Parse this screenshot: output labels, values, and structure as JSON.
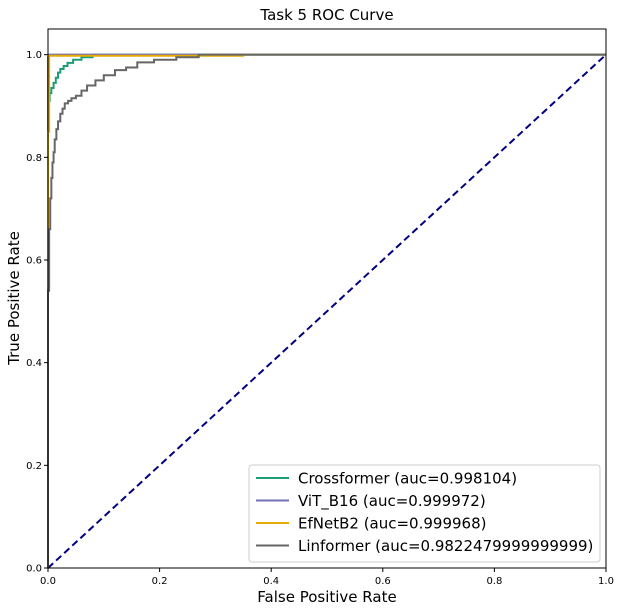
{
  "chart_data": {
    "type": "line",
    "title": "Task 5 ROC Curve",
    "xlabel": "False Positive Rate",
    "ylabel": "True Positive Rate",
    "xlim": [
      0,
      1
    ],
    "ylim": [
      0,
      1.05
    ],
    "xticks": [
      0.0,
      0.2,
      0.4,
      0.6,
      0.8,
      1.0
    ],
    "xtick_labels": [
      "0.0",
      "0.2",
      "0.4",
      "0.6",
      "0.8",
      "1.0"
    ],
    "yticks": [
      0.0,
      0.2,
      0.4,
      0.6,
      0.8,
      1.0
    ],
    "ytick_labels": [
      "0.0",
      "0.2",
      "0.4",
      "0.6",
      "0.8",
      "1.0"
    ],
    "grid": false,
    "legend_position": "lower-right",
    "series": [
      {
        "name": "Crossformer (auc=0.998104)",
        "color": "#1b9e77",
        "x": [
          0,
          0,
          0.003,
          0.003,
          0.006,
          0.006,
          0.01,
          0.01,
          0.014,
          0.014,
          0.018,
          0.018,
          0.022,
          0.022,
          0.028,
          0.028,
          0.035,
          0.035,
          0.045,
          0.045,
          0.06,
          0.06,
          0.08,
          0.08,
          1.0
        ],
        "y": [
          0,
          0.91,
          0.91,
          0.925,
          0.925,
          0.935,
          0.935,
          0.945,
          0.945,
          0.955,
          0.955,
          0.965,
          0.965,
          0.972,
          0.972,
          0.978,
          0.978,
          0.984,
          0.984,
          0.99,
          0.99,
          0.995,
          0.995,
          1.0,
          1.0
        ]
      },
      {
        "name": "ViT_B16 (auc=0.999972)",
        "color": "#7570b3",
        "x": [
          0,
          0,
          0.002,
          0.002,
          1.0
        ],
        "y": [
          0,
          0.995,
          0.995,
          1.0,
          1.0
        ]
      },
      {
        "name": "EfNetB2 (auc=0.999968)",
        "color": "#e6ab02",
        "x": [
          0,
          0,
          0.002,
          0.002,
          0.35,
          0.35,
          1.0
        ],
        "y": [
          0,
          0.85,
          0.85,
          0.998,
          0.998,
          1.0,
          1.0
        ]
      },
      {
        "name": "Linformer (auc=0.9822479999999999)",
        "color": "#666666",
        "x": [
          0,
          0,
          0.002,
          0.002,
          0.004,
          0.004,
          0.006,
          0.006,
          0.008,
          0.008,
          0.01,
          0.01,
          0.012,
          0.012,
          0.015,
          0.015,
          0.018,
          0.018,
          0.022,
          0.022,
          0.026,
          0.026,
          0.03,
          0.03,
          0.036,
          0.036,
          0.042,
          0.042,
          0.05,
          0.05,
          0.06,
          0.06,
          0.07,
          0.07,
          0.085,
          0.085,
          0.1,
          0.1,
          0.12,
          0.12,
          0.14,
          0.14,
          0.16,
          0.16,
          0.19,
          0.19,
          0.23,
          0.23,
          0.27,
          0.27,
          1.0
        ],
        "y": [
          0,
          0.54,
          0.54,
          0.66,
          0.66,
          0.72,
          0.72,
          0.76,
          0.76,
          0.79,
          0.79,
          0.81,
          0.81,
          0.835,
          0.835,
          0.855,
          0.855,
          0.87,
          0.87,
          0.885,
          0.885,
          0.895,
          0.895,
          0.905,
          0.905,
          0.91,
          0.91,
          0.915,
          0.915,
          0.92,
          0.92,
          0.93,
          0.93,
          0.94,
          0.94,
          0.95,
          0.95,
          0.96,
          0.96,
          0.97,
          0.97,
          0.975,
          0.975,
          0.985,
          0.985,
          0.99,
          0.99,
          0.995,
          0.995,
          1.0,
          1.0
        ]
      }
    ],
    "reference_line": {
      "x": [
        0,
        1
      ],
      "y": [
        0,
        1
      ],
      "color": "#000080",
      "style": "dashed"
    }
  }
}
